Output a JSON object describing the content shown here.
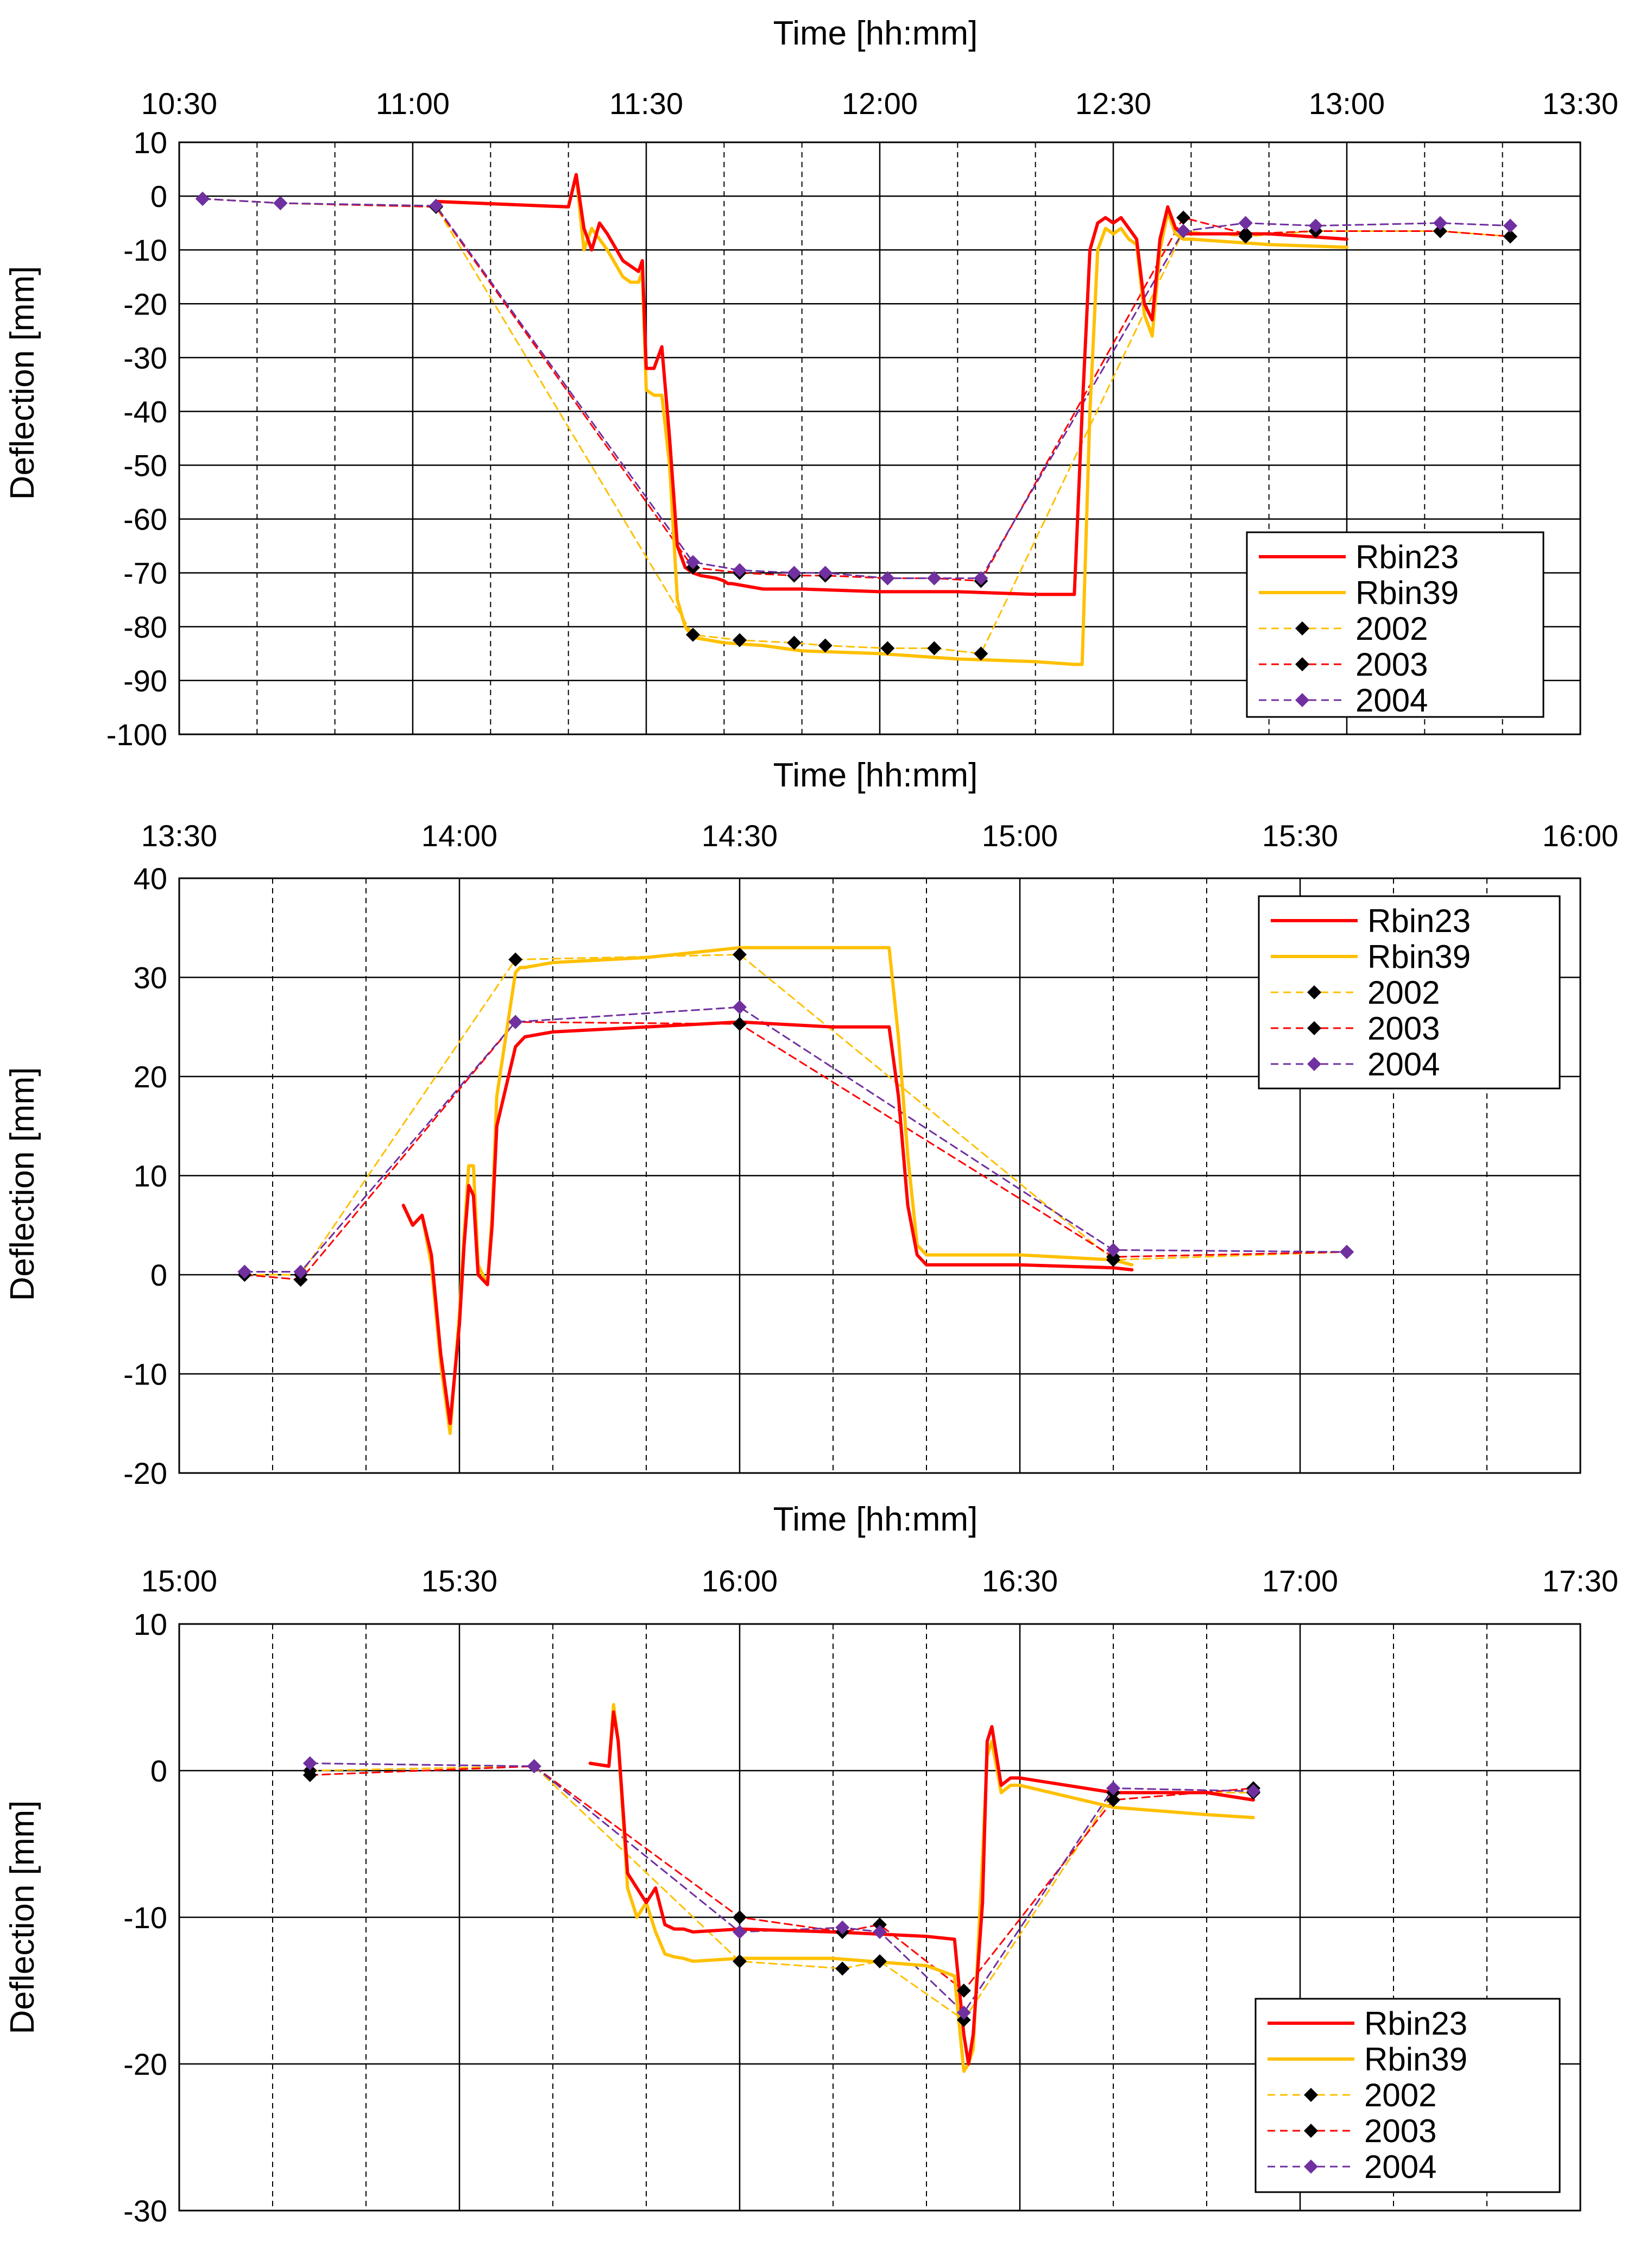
{
  "colors": {
    "rbin23": "#ff0000",
    "rbin39": "#ffc000",
    "s2002": "#ffc000",
    "s2003": "#ff0000",
    "s2004": "#7030a0",
    "marker_dark": "#000000",
    "marker_purple": "#7030a0"
  },
  "chart_data": [
    {
      "type": "line",
      "xlabel": "Time [hh:mm]",
      "ylabel": "Deflection [mm]",
      "xlim_min": [
        630,
        810
      ],
      "ylim": [
        -100,
        10
      ],
      "ytick_step": 10,
      "xtick_labels": [
        "10:30",
        "11:00",
        "11:30",
        "12:00",
        "12:30",
        "13:00",
        "13:30"
      ],
      "ytick_labels": [
        "10",
        "0",
        "-10",
        "-20",
        "-30",
        "-40",
        "-50",
        "-60",
        "-70",
        "-80",
        "-90",
        "-100"
      ],
      "legend": [
        "Rbin23",
        "Rbin39",
        "2002",
        "2003",
        "2004"
      ],
      "series": [
        {
          "name": "Rbin23",
          "kind": "solid",
          "x": [
            663,
            680,
            681,
            682,
            683,
            684,
            685,
            687,
            688,
            689,
            689.5,
            690,
            691,
            692,
            693,
            694,
            695,
            696,
            697,
            699,
            700,
            700.5,
            701,
            703,
            705,
            710,
            720,
            730,
            740,
            745,
            746,
            747,
            748,
            749,
            750,
            751,
            752,
            753,
            754,
            755,
            756,
            757,
            758,
            759,
            760,
            770,
            780
          ],
          "y": [
            -1,
            -2,
            4,
            -6,
            -10,
            -5,
            -7,
            -12,
            -13,
            -14,
            -12,
            -32,
            -32,
            -28,
            -45,
            -65,
            -69,
            -70,
            -70.5,
            -71,
            -71.5,
            -72,
            -72,
            -72.5,
            -73,
            -73,
            -73.5,
            -73.5,
            -74,
            -74,
            -40,
            -10,
            -5,
            -4,
            -5,
            -4,
            -6,
            -8,
            -20,
            -23,
            -8,
            -2,
            -6,
            -7,
            -7,
            -7,
            -8
          ]
        },
        {
          "name": "Rbin39",
          "kind": "solid",
          "x": [
            663,
            680,
            681,
            682,
            683,
            684,
            685,
            687,
            688,
            689,
            689.5,
            690,
            691,
            692,
            693,
            694,
            695,
            696,
            700,
            705,
            710,
            720,
            730,
            740,
            745,
            746,
            747,
            748,
            749,
            750,
            751,
            752,
            753,
            754,
            755,
            756,
            757,
            758,
            759,
            760,
            770,
            780
          ],
          "y": [
            -1,
            -2,
            4,
            -10,
            -6,
            -8,
            -10,
            -15,
            -16,
            -16,
            -14,
            -36,
            -37,
            -37,
            -50,
            -75,
            -80,
            -82,
            -83,
            -83.5,
            -84.5,
            -85,
            -86,
            -86.5,
            -87,
            -87,
            -40,
            -10,
            -6,
            -7,
            -6,
            -8,
            -9,
            -22,
            -26,
            -10,
            -3,
            -7,
            -8,
            -8,
            -9,
            -9.5
          ]
        },
        {
          "name": "2002",
          "kind": "dashed",
          "x": [
            633,
            643,
            663,
            696,
            702,
            709,
            713,
            721,
            727,
            733,
            759,
            767,
            776,
            792,
            801
          ],
          "y": [
            -0.5,
            -1.3,
            -2,
            -81.5,
            -82.5,
            -83,
            -83.5,
            -84,
            -84,
            -85,
            -6.5,
            -7.5,
            -6.5,
            -6.5,
            -7.5
          ]
        },
        {
          "name": "2003",
          "kind": "dashed",
          "x": [
            633,
            643,
            663,
            696,
            702,
            709,
            713,
            721,
            727,
            733,
            759,
            767,
            776,
            792,
            801
          ],
          "y": [
            -0.5,
            -1.3,
            -2,
            -69,
            -70,
            -70.5,
            -70.5,
            -71,
            -71,
            -71.5,
            -4,
            -7,
            -6.5,
            -6.5,
            -7.5
          ]
        },
        {
          "name": "2004",
          "kind": "dashed",
          "x": [
            633,
            643,
            663,
            696,
            702,
            709,
            713,
            721,
            727,
            733,
            759,
            767,
            776,
            792,
            801
          ],
          "y": [
            -0.5,
            -1.3,
            -1.8,
            -68,
            -69.5,
            -70,
            -70,
            -71,
            -71,
            -71,
            -6.5,
            -5,
            -5.5,
            -5,
            -5.5
          ]
        }
      ]
    },
    {
      "type": "line",
      "xlabel": "Time [hh:mm]",
      "ylabel": "Deflection [mm]",
      "xlim_min": [
        810,
        960
      ],
      "ylim": [
        -20,
        40
      ],
      "ytick_step": 10,
      "xtick_labels": [
        "13:30",
        "14:00",
        "14:30",
        "15:00",
        "15:30",
        "16:00"
      ],
      "ytick_labels": [
        "40",
        "30",
        "20",
        "10",
        "0",
        "-10",
        "-20"
      ],
      "legend": [
        "Rbin23",
        "Rbin39",
        "2002",
        "2003",
        "2004"
      ],
      "series": [
        {
          "name": "Rbin23",
          "kind": "solid",
          "x": [
            834,
            835,
            836,
            837,
            838,
            839,
            840,
            840.5,
            841,
            841.5,
            842,
            843,
            843.5,
            844,
            846,
            846.5,
            847,
            850,
            860,
            870,
            880,
            886,
            887,
            888,
            889,
            890,
            900,
            910,
            912
          ],
          "y": [
            7,
            5,
            6,
            2,
            -8,
            -15,
            -5,
            3,
            9,
            8,
            0,
            -1,
            5,
            15,
            23,
            23.5,
            24,
            24.5,
            25,
            25.5,
            25,
            25,
            18,
            7,
            2,
            1,
            1,
            0.7,
            0.5
          ]
        },
        {
          "name": "Rbin39",
          "kind": "solid",
          "x": [
            834,
            835,
            836,
            837,
            838,
            839,
            840,
            840.5,
            841,
            841.5,
            842,
            843,
            843.5,
            844,
            846,
            846.5,
            847,
            850,
            860,
            870,
            880,
            886,
            887,
            888,
            889,
            890,
            900,
            910,
            912
          ],
          "y": [
            7,
            5,
            6,
            1,
            -9,
            -16,
            -4,
            4,
            11,
            11,
            1,
            -1,
            6,
            18,
            30.5,
            31,
            31,
            31.5,
            32,
            33,
            33,
            33,
            24,
            12,
            3,
            2,
            2,
            1.5,
            1
          ]
        },
        {
          "name": "2002",
          "kind": "dashed",
          "x": [
            817,
            823,
            846,
            870,
            910,
            935
          ],
          "y": [
            0,
            0,
            31.8,
            32.3,
            1.5,
            2.3
          ]
        },
        {
          "name": "2003",
          "kind": "dashed",
          "x": [
            817,
            823,
            846,
            870,
            910,
            935
          ],
          "y": [
            0,
            -0.5,
            25.5,
            25.3,
            1.8,
            2.3
          ]
        },
        {
          "name": "2004",
          "kind": "dashed",
          "x": [
            817,
            823,
            846,
            870,
            910,
            935
          ],
          "y": [
            0.3,
            0.3,
            25.5,
            27,
            2.5,
            2.3
          ]
        }
      ]
    },
    {
      "type": "line",
      "xlabel": "Time [hh:mm]",
      "ylabel": "Deflection [mm]",
      "xlim_min": [
        900,
        1050
      ],
      "ylim": [
        -30,
        10
      ],
      "ytick_step": 10,
      "xtick_labels": [
        "15:00",
        "15:30",
        "16:00",
        "16:30",
        "17:00",
        "17:30"
      ],
      "ytick_labels": [
        "10",
        "0",
        "-10",
        "-20",
        "-30"
      ],
      "legend": [
        "Rbin23",
        "Rbin39",
        "2002",
        "2003",
        "2004"
      ],
      "series": [
        {
          "name": "Rbin23",
          "kind": "solid",
          "x": [
            944,
            946,
            946.5,
            947,
            948,
            949,
            950,
            951,
            952,
            953,
            954,
            955,
            960,
            970,
            980,
            983,
            984,
            984.5,
            985,
            986,
            986.5,
            987,
            988,
            989,
            990,
            1000,
            1010,
            1015
          ],
          "y": [
            0.5,
            0.3,
            4,
            2,
            -7,
            -8,
            -9,
            -8,
            -10.5,
            -10.8,
            -10.8,
            -11,
            -10.8,
            -11,
            -11.3,
            -11.5,
            -18,
            -20,
            -18,
            -9,
            2,
            3,
            -1,
            -0.5,
            -0.5,
            -1.5,
            -1.5,
            -2
          ]
        },
        {
          "name": "Rbin39",
          "kind": "solid",
          "x": [
            944,
            946,
            946.5,
            947,
            948,
            949,
            950,
            951,
            952,
            953,
            954,
            955,
            960,
            970,
            980,
            983,
            984,
            984.5,
            985,
            986,
            986.5,
            987,
            988,
            989,
            990,
            1000,
            1010,
            1015
          ],
          "y": [
            0.5,
            0.3,
            4.5,
            2,
            -8,
            -10,
            -9,
            -11,
            -12.5,
            -12.7,
            -12.8,
            -13,
            -12.8,
            -12.8,
            -13.3,
            -14,
            -20.5,
            -20,
            -19,
            -6,
            1,
            2,
            -1.5,
            -1,
            -1,
            -2.5,
            -3,
            -3.2
          ]
        },
        {
          "name": "2002",
          "kind": "dashed",
          "x": [
            914,
            938,
            960,
            971,
            975,
            984,
            1000,
            1015
          ],
          "y": [
            0,
            0.3,
            -13,
            -13.5,
            -13,
            -17,
            -1.5,
            -1.5
          ]
        },
        {
          "name": "2003",
          "kind": "dashed",
          "x": [
            914,
            938,
            960,
            971,
            975,
            984,
            1000,
            1015
          ],
          "y": [
            -0.3,
            0.3,
            -10,
            -11,
            -10.5,
            -15,
            -2,
            -1.2
          ]
        },
        {
          "name": "2004",
          "kind": "dashed",
          "x": [
            914,
            938,
            960,
            971,
            975,
            984,
            1000,
            1015
          ],
          "y": [
            0.5,
            0.3,
            -11,
            -10.7,
            -11,
            -16.5,
            -1.2,
            -1.4
          ]
        }
      ]
    }
  ]
}
